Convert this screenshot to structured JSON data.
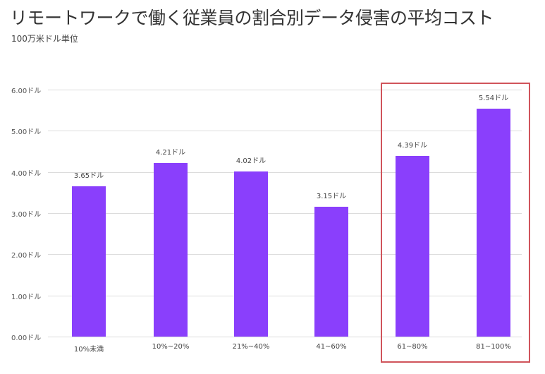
{
  "chart_data": {
    "type": "bar",
    "title": "リモートワークで働く従業員の割合別データ侵害の平均コスト",
    "subtitle": "100万米ドル単位",
    "xlabel": "",
    "ylabel": "",
    "categories": [
      "10%未満",
      "10%~20%",
      "21%~40%",
      "41~60%",
      "61~80%",
      "81~100%"
    ],
    "values": [
      3.65,
      4.21,
      4.02,
      3.15,
      4.39,
      5.54
    ],
    "value_labels": [
      "3.65ドル",
      "4.21ドル",
      "4.02ドル",
      "3.15ドル",
      "4.39ドル",
      "5.54ドル"
    ],
    "ylim": [
      0,
      6
    ],
    "yticks": [
      "0.00ドル",
      "1.00ドル",
      "2.00ドル",
      "3.00ドル",
      "4.00ドル",
      "5.00ドル",
      "6.00ドル"
    ],
    "grid": true,
    "legend": null,
    "bar_color": "#8a3ffc",
    "annotation": {
      "type": "highlight-box",
      "covers_categories": [
        "61~80%",
        "81~100%"
      ],
      "color": "#d0545b"
    }
  }
}
